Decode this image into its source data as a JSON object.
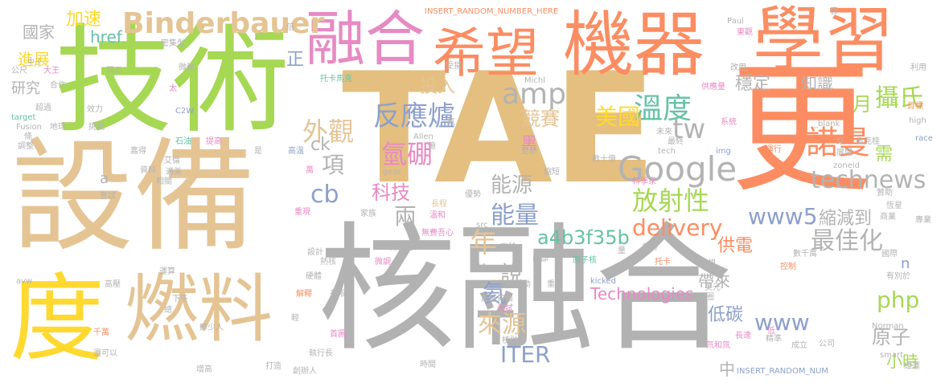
{
  "words": [
    {
      "text": "TAE",
      "color": "#e4bf80"
    },
    {
      "text": "核融合",
      "color": "#b2b2b2"
    },
    {
      "text": "設備",
      "color": "#e5c494"
    },
    {
      "text": "技術",
      "color": "#a6d854"
    },
    {
      "text": "更",
      "color": "#fc8d62"
    },
    {
      "text": "機器",
      "color": "#fc8d62"
    },
    {
      "text": "學習",
      "color": "#fc8d62"
    },
    {
      "text": "希望",
      "color": "#fc8d62"
    },
    {
      "text": "融合",
      "color": "#e78ac3"
    },
    {
      "text": "燃料",
      "color": "#e5c494"
    },
    {
      "text": "度",
      "color": "#ffd92f"
    },
    {
      "text": "Binderbauer",
      "color": "#e5c494"
    },
    {
      "text": "Google",
      "color": "#b3b3b3"
    },
    {
      "text": "反應爐",
      "color": "#8da0cb"
    },
    {
      "text": "溫度",
      "color": "#66c2a5"
    },
    {
      "text": "諾曼",
      "color": "#fc8d62"
    },
    {
      "text": "美國",
      "color": "#ffd92f"
    },
    {
      "text": "攝氏",
      "color": "#a6d854"
    },
    {
      "text": "外觀",
      "color": "#e5c494"
    },
    {
      "text": "amp",
      "color": "#b3b3b3"
    },
    {
      "text": "tw",
      "color": "#b3b3b3"
    },
    {
      "text": "technews",
      "color": "#b3b3b3"
    },
    {
      "text": "放射性",
      "color": "#a6d854"
    },
    {
      "text": "delivery",
      "color": "#fc8d62"
    },
    {
      "text": "www5",
      "color": "#8da0cb"
    },
    {
      "text": "最佳化",
      "color": "#b3b3b3"
    },
    {
      "text": "php",
      "color": "#a6d854"
    },
    {
      "text": "www",
      "color": "#8da0cb"
    },
    {
      "text": "能量",
      "color": "#8da0cb"
    },
    {
      "text": "能源",
      "color": "#b3b3b3"
    },
    {
      "text": "a4b3f35b",
      "color": "#66c2a5"
    },
    {
      "text": "ITER",
      "color": "#8da0cb"
    },
    {
      "text": "來源",
      "color": "#e5c494"
    },
    {
      "text": "氦",
      "color": "#8da0cb"
    },
    {
      "text": "氫硼",
      "color": "#e78ac3"
    },
    {
      "text": "科技",
      "color": "#e78ac3"
    },
    {
      "text": "兩",
      "color": "#b3b3b3"
    },
    {
      "text": "說",
      "color": "#b3b3b3"
    },
    {
      "text": "年",
      "color": "#e5c494"
    },
    {
      "text": "cb",
      "color": "#8da0cb"
    },
    {
      "text": "項",
      "color": "#b3b3b3"
    },
    {
      "text": "ck",
      "color": "#b3b3b3"
    },
    {
      "text": "國家",
      "color": "#b3b3b3"
    },
    {
      "text": "加速",
      "color": "#ffd92f"
    },
    {
      "text": "進展",
      "color": "#ffd92f"
    },
    {
      "text": "研究",
      "color": "#b3b3b3"
    },
    {
      "text": "href",
      "color": "#66c2a5"
    },
    {
      "text": "正",
      "color": "#8da0cb"
    },
    {
      "text": "投入",
      "color": "#e5c494"
    },
    {
      "text": "穩定",
      "color": "#b3b3b3"
    },
    {
      "text": "知識",
      "color": "#b3b3b3"
    },
    {
      "text": "月",
      "color": "#a6d854"
    },
    {
      "text": "競賽",
      "color": "#e5c494"
    },
    {
      "text": "Technologies",
      "color": "#e78ac3"
    },
    {
      "text": "原子",
      "color": "#b3b3b3"
    },
    {
      "text": "低碳",
      "color": "#8da0cb"
    },
    {
      "text": "供電",
      "color": "#fc8d62"
    },
    {
      "text": "縮減到",
      "color": "#b3b3b3"
    },
    {
      "text": "小時",
      "color": "#a6d854"
    },
    {
      "text": "需",
      "color": "#a6d854"
    },
    {
      "text": "帶來",
      "color": "#b3b3b3"
    },
    {
      "text": "中",
      "color": "#b3b3b3"
    },
    {
      "text": "黑",
      "color": "#e78ac3"
    },
    {
      "text": "n",
      "color": "#8da0cb"
    },
    {
      "text": "a",
      "color": "#b3b3b3"
    },
    {
      "text": "INSERT_RANDOM_NUMBER_HERE",
      "color": "#fc8d62"
    },
    {
      "text": "INSERT_RANDOM_NUM",
      "color": "#8da0cb"
    },
    {
      "text": "Paul",
      "color": "#b3b3b3"
    },
    {
      "text": "東觀",
      "color": "#e78ac3"
    },
    {
      "text": "音",
      "color": "#b3b3b3"
    },
    {
      "text": "倍",
      "color": "#b3b3b3"
    },
    {
      "text": "密集型",
      "color": "#b3b3b3"
    },
    {
      "text": "微軟",
      "color": "#b3b3b3"
    },
    {
      "text": "托卡馬克",
      "color": "#66c2a5"
    },
    {
      "text": "Michl",
      "color": "#b3b3b3"
    },
    {
      "text": "供應量",
      "color": "#e78ac3"
    },
    {
      "text": "改用",
      "color": "#b3b3b3"
    },
    {
      "text": "利用",
      "color": "#b3b3b3"
    },
    {
      "text": "公尺",
      "color": "#b3b3b3"
    },
    {
      "text": "大王",
      "color": "#e78ac3"
    },
    {
      "text": "同刀",
      "color": "#b3b3b3"
    },
    {
      "text": "太",
      "color": "#e78ac3"
    },
    {
      "text": "超過",
      "color": "#b3b3b3"
    },
    {
      "text": "目標",
      "color": "#fc8d62"
    },
    {
      "text": "target",
      "color": "#66c2a5"
    },
    {
      "text": "Fusion",
      "color": "#b3b3b3"
    },
    {
      "text": "地球",
      "color": "#b3b3b3"
    },
    {
      "text": "效力",
      "color": "#b3b3b3"
    },
    {
      "text": "挑戰",
      "color": "#b3b3b3"
    },
    {
      "text": "C2W",
      "color": "#8da0cb"
    },
    {
      "text": "石油",
      "color": "#66c2a5"
    },
    {
      "text": "系統",
      "color": "#e78ac3"
    },
    {
      "text": "_blank",
      "color": "#b3b3b3"
    },
    {
      "text": "high",
      "color": "#b3b3b3"
    },
    {
      "text": "race",
      "color": "#8da0cb"
    },
    {
      "text": "條",
      "color": "#b3b3b3"
    },
    {
      "text": "調整",
      "color": "#b3b3b3"
    },
    {
      "text": "合作",
      "color": "#b3b3b3"
    },
    {
      "text": "中子",
      "color": "#b3b3b3"
    },
    {
      "text": "嘉得",
      "color": "#b3b3b3"
    },
    {
      "text": "提高",
      "color": "#e78ac3"
    },
    {
      "text": "Allen",
      "color": "#b3b3b3"
    },
    {
      "text": "高溫",
      "color": "#8da0cb"
    },
    {
      "text": "最終",
      "color": "#b3b3b3"
    },
    {
      "text": "tech",
      "color": "#b3b3b3"
    },
    {
      "text": "img",
      "color": "#8da0cb"
    },
    {
      "text": "運行",
      "color": "#fc8d62"
    },
    {
      "text": "展開",
      "color": "#b3b3b3"
    },
    {
      "text": "zoneid",
      "color": "#b3b3b3"
    },
    {
      "text": "科學家",
      "color": "#e78ac3"
    },
    {
      "text": "數十億",
      "color": "#b3b3b3"
    },
    {
      "text": "更新",
      "color": "#b3b3b3"
    },
    {
      "text": "縮短",
      "color": "#b3b3b3"
    },
    {
      "text": "gear",
      "color": "#b3b3b3"
    },
    {
      "text": "資料",
      "color": "#b3b3b3"
    },
    {
      "text": "嘗試",
      "color": "#b3b3b3"
    },
    {
      "text": "相關",
      "color": "#b3b3b3"
    },
    {
      "text": "萬",
      "color": "#e78ac3"
    },
    {
      "text": "贊助",
      "color": "#b3b3b3"
    },
    {
      "text": "恆星",
      "color": "#b3b3b3"
    },
    {
      "text": "商業",
      "color": "#b3b3b3"
    },
    {
      "text": "專業",
      "color": "#b3b3b3"
    },
    {
      "text": "長程",
      "color": "#e5c494"
    },
    {
      "text": "溫和",
      "color": "#e78ac3"
    },
    {
      "text": "優勢",
      "color": "#b3b3b3"
    },
    {
      "text": "家族",
      "color": "#b3b3b3"
    },
    {
      "text": "重現",
      "color": "#e78ac3"
    },
    {
      "text": "設計",
      "color": "#b3b3b3"
    },
    {
      "text": "熱核",
      "color": "#b3b3b3"
    },
    {
      "text": "固住體",
      "color": "#b3b3b3"
    },
    {
      "text": "無費吾心",
      "color": "#e78ac3"
    },
    {
      "text": "實驗",
      "color": "#b3b3b3"
    },
    {
      "text": "看待",
      "color": "#b3b3b3"
    },
    {
      "text": "托卡",
      "color": "#fc8d62"
    },
    {
      "text": "src",
      "color": "#b3b3b3"
    },
    {
      "text": "內部",
      "color": "#b3b3b3"
    },
    {
      "text": "原子核",
      "color": "#66c2a5"
    },
    {
      "text": "常規",
      "color": "#b3b3b3"
    },
    {
      "text": "數千萬",
      "color": "#b3b3b3"
    },
    {
      "text": "控制",
      "color": "#fc8d62"
    },
    {
      "text": "國際",
      "color": "#b3b3b3"
    },
    {
      "text": "avw",
      "color": "#b3b3b3"
    },
    {
      "text": "運算",
      "color": "#b3b3b3"
    },
    {
      "text": "硬體",
      "color": "#b3b3b3"
    },
    {
      "text": "電城",
      "color": "#b3b3b3"
    },
    {
      "text": "高壓",
      "color": "#b3b3b3"
    },
    {
      "text": "kicked",
      "color": "#8da0cb"
    },
    {
      "text": "美元",
      "color": "#b3b3b3"
    },
    {
      "text": "甜甜圈",
      "color": "#b3b3b3"
    },
    {
      "text": "有別於",
      "color": "#b3b3b3"
    },
    {
      "text": "解釋",
      "color": "#fc8d62"
    },
    {
      "text": "有限",
      "color": "#b3b3b3"
    },
    {
      "text": "高盛集團",
      "color": "#b3b3b3"
    },
    {
      "text": "測試",
      "color": "#e78ac3"
    },
    {
      "text": "長達",
      "color": "#e78ac3"
    },
    {
      "text": "鮮少人",
      "color": "#b3b3b3"
    },
    {
      "text": "千萬",
      "color": "#fc8d62"
    },
    {
      "text": "首圖",
      "color": "#e78ac3"
    },
    {
      "text": "核融合",
      "color": "#b3b3b3"
    },
    {
      "text": "性能",
      "color": "#b3b3b3"
    },
    {
      "text": "精準",
      "color": "#b3b3b3"
    },
    {
      "text": "成立",
      "color": "#b3b3b3"
    },
    {
      "text": "公司",
      "color": "#b3b3b3"
    },
    {
      "text": "Norman",
      "color": "#b3b3b3"
    },
    {
      "text": "smart",
      "color": "#b3b3b3"
    },
    {
      "text": "維運",
      "color": "#b3b3b3"
    },
    {
      "text": "還可以",
      "color": "#b3b3b3"
    },
    {
      "text": "執行長",
      "color": "#b3b3b3"
    },
    {
      "text": "增高",
      "color": "#b3b3b3"
    },
    {
      "text": "打造",
      "color": "#b3b3b3"
    },
    {
      "text": "創辦人",
      "color": "#b3b3b3"
    },
    {
      "text": "時間",
      "color": "#b3b3b3"
    },
    {
      "text": "洛克斐勒",
      "color": "#b3b3b3"
    },
    {
      "text": "低",
      "color": "#e78ac3"
    },
    {
      "text": "氘和氚",
      "color": "#e78ac3"
    },
    {
      "text": "下午",
      "color": "#b3b3b3"
    },
    {
      "text": "總",
      "color": "#b3b3b3"
    },
    {
      "text": "輕",
      "color": "#b3b3b3"
    },
    {
      "text": "重",
      "color": "#b3b3b3"
    },
    {
      "text": "氣",
      "color": "#b3b3b3"
    },
    {
      "text": "量",
      "color": "#b3b3b3"
    },
    {
      "text": "微調",
      "color": "#e78ac3"
    },
    {
      "text": "穿",
      "color": "#b3b3b3"
    },
    {
      "text": "馬克桂",
      "color": "#b3b3b3"
    },
    {
      "text": "未來",
      "color": "#b3b3b3"
    },
    {
      "text": "是",
      "color": "#b3b3b3"
    },
    {
      "text": "艾倫",
      "color": "#b3b3b3"
    },
    {
      "text": "適美",
      "color": "#b3b3b3"
    },
    {
      "text": "億",
      "color": "#b3b3b3"
    },
    {
      "text": "受損",
      "color": "#b3b3b3"
    },
    {
      "text": "氣",
      "color": "#b3b3b3"
    }
  ]
}
